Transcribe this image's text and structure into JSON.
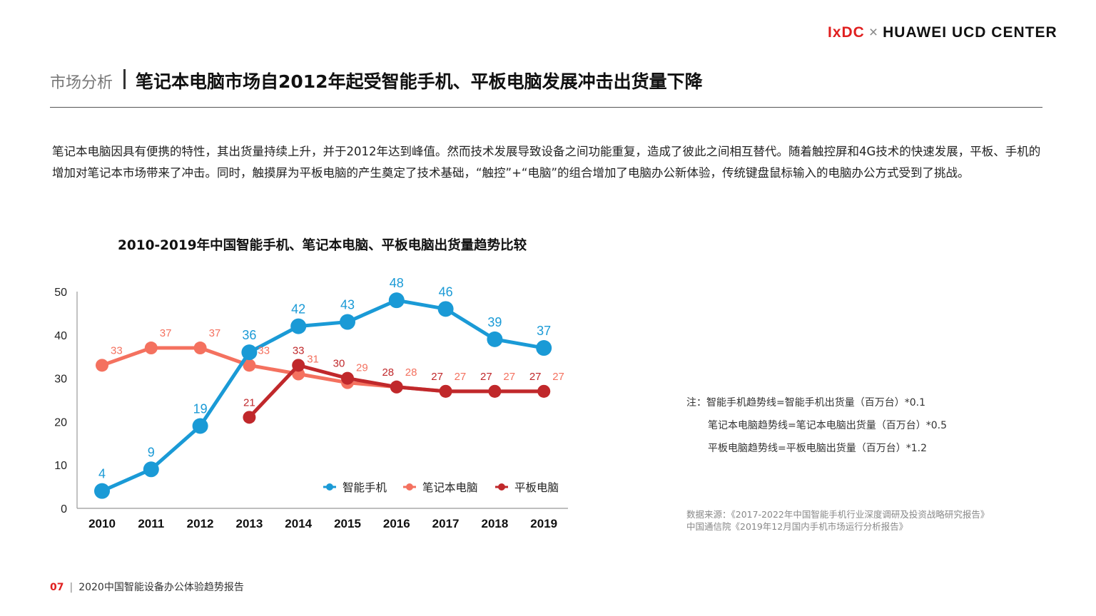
{
  "logo": {
    "left": "IxDC",
    "cross": "×",
    "right": "HUAWEI UCD CENTER"
  },
  "header": {
    "section": "市场分析",
    "title": "笔记本电脑市场自2012年起受智能手机、平板电脑发展冲击出货量下降"
  },
  "body_text": "笔记本电脑因具有便携的特性，其出货量持续上升，并于2012年达到峰值。然而技术发展导致设备之间功能重复，造成了彼此之间相互替代。随着触控屏和4G技术的快速发展，平板、手机的增加对笔记本市场带来了冲击。同时，触摸屏为平板电脑的产生奠定了技术基础，“触控”+“电脑”的组合增加了电脑办公新体验，传统键盘鼠标输入的电脑办公方式受到了挑战。",
  "notes": [
    "注：智能手机趋势线=智能手机出货量（百万台）*0.1",
    "笔记本电脑趋势线=笔记本电脑出货量（百万台）*0.5",
    "平板电脑趋势线=平板电脑出货量（百万台）*1.2"
  ],
  "sources": [
    "数据来源：《2017-2022年中国智能手机行业深度调研及投资战略研究报告》",
    "中国通信院《2019年12月国内手机市场运行分析报告》"
  ],
  "footer": {
    "page": "07",
    "sep": "|",
    "title": "2020中国智能设备办公体验趋势报告"
  },
  "chart_data": {
    "type": "line",
    "title": "2010-2019年中国智能手机、笔记本电脑、平板电脑出货量趋势比较",
    "categories": [
      "2010",
      "2011",
      "2012",
      "2013",
      "2014",
      "2015",
      "2016",
      "2017",
      "2018",
      "2019"
    ],
    "ylim": [
      0,
      50
    ],
    "yticks": [
      "0",
      "10",
      "20",
      "30",
      "40",
      "50"
    ],
    "grid": false,
    "legend_position": "bottom-right inside",
    "series": [
      {
        "name": "智能手机",
        "color": "#1a9ad6",
        "values": [
          4,
          9,
          19,
          36,
          42,
          43,
          48,
          46,
          39,
          37
        ]
      },
      {
        "name": "笔记本电脑",
        "color": "#f4715f",
        "values": [
          33,
          37,
          37,
          33,
          31,
          29,
          28,
          27,
          27,
          27
        ]
      },
      {
        "name": "平板电脑",
        "color": "#c0282b",
        "values": [
          null,
          null,
          null,
          21,
          33,
          30,
          28,
          27,
          27,
          27
        ]
      }
    ]
  }
}
